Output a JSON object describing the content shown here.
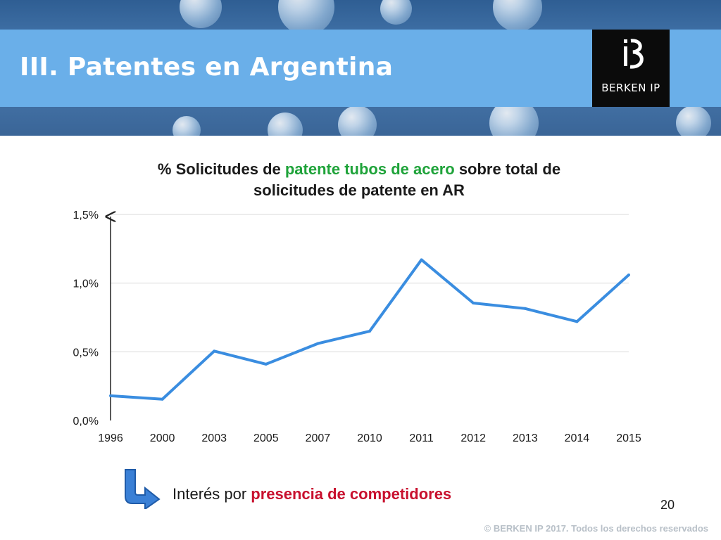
{
  "slide": {
    "title": "III. Patentes en Argentina",
    "logo_text": "BERKEN IP",
    "page_number": "20",
    "footer": "© BERKEN IP 2017. Todos los derechos reservados"
  },
  "chart_title": {
    "part1": "% Solicitudes de ",
    "part2": "patente tubos de acero",
    "part3": " sobre total de",
    "line2": "solicitudes de patente en AR"
  },
  "chart_data": {
    "type": "line",
    "title": "% Solicitudes de patente tubos de acero sobre total de solicitudes de patente en AR",
    "categories": [
      "1996",
      "2000",
      "2003",
      "2005",
      "2007",
      "2010",
      "2011",
      "2012",
      "2013",
      "2014",
      "2015"
    ],
    "series": [
      {
        "values": [
          0.18,
          0.155,
          0.505,
          0.41,
          0.56,
          0.65,
          1.17,
          0.855,
          0.815,
          0.72,
          1.06
        ]
      }
    ],
    "ylim": [
      0,
      1.5
    ],
    "yticks": [
      0,
      0.5,
      1.0,
      1.5
    ],
    "ytick_labels": [
      "0,0%",
      "0,5%",
      "1,0%",
      "1,5%"
    ],
    "grid": true,
    "line_color": "#3a8de0"
  },
  "note": {
    "prefix": "Interés por ",
    "highlight": "presencia de competidores"
  },
  "icons": {
    "arrow": "curved-arrow-down-right-icon",
    "logo": "berken-ip-logo"
  }
}
